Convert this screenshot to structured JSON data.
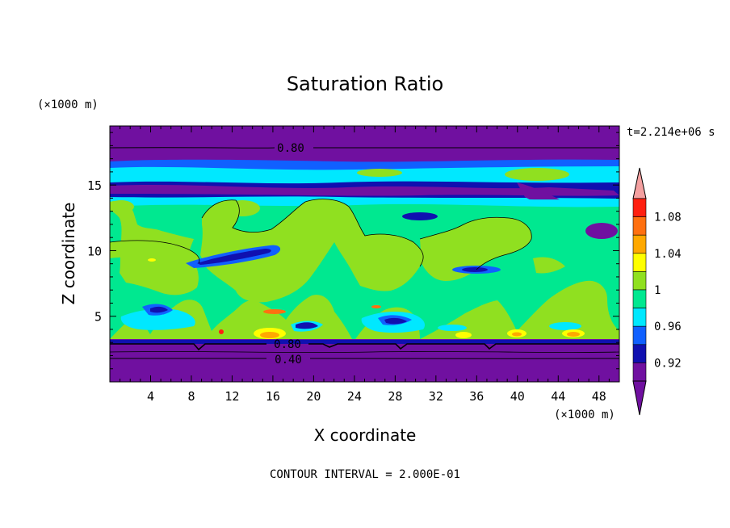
{
  "chart_data": {
    "type": "heatmap",
    "title": "Saturation Ratio",
    "xlabel": "X coordinate",
    "ylabel": "Z coordinate",
    "x_unit_label": "(×1000 m)",
    "y_unit_label": "(×1000 m)",
    "time_label": "t=2.214e+06 s",
    "footer": "CONTOUR INTERVAL = 2.000E-01",
    "xlim": [
      0,
      50
    ],
    "ylim": [
      0,
      19.5
    ],
    "x_ticks": [
      4,
      8,
      12,
      16,
      20,
      24,
      28,
      32,
      36,
      40,
      44,
      48
    ],
    "y_ticks": [
      5,
      10,
      15
    ],
    "contour_lines": [
      {
        "label": "0.80",
        "z": 18.0,
        "x": 17
      },
      {
        "label": "0.80",
        "z": 2.9,
        "x": 16
      },
      {
        "label": "0.40",
        "z": 1.6,
        "x": 17
      }
    ],
    "colorbar": {
      "levels": [
        "0.92",
        "0.96",
        "1",
        "1.04",
        "1.08"
      ],
      "colors": [
        "#ff2010",
        "#ff7010",
        "#ffa800",
        "#ffff00",
        "#90e020",
        "#00e890",
        "#00e8ff",
        "#1060ff",
        "#1010b0",
        "#7010a0"
      ],
      "over_color": "#f4a0a0",
      "under_color": "#7010a0"
    }
  }
}
